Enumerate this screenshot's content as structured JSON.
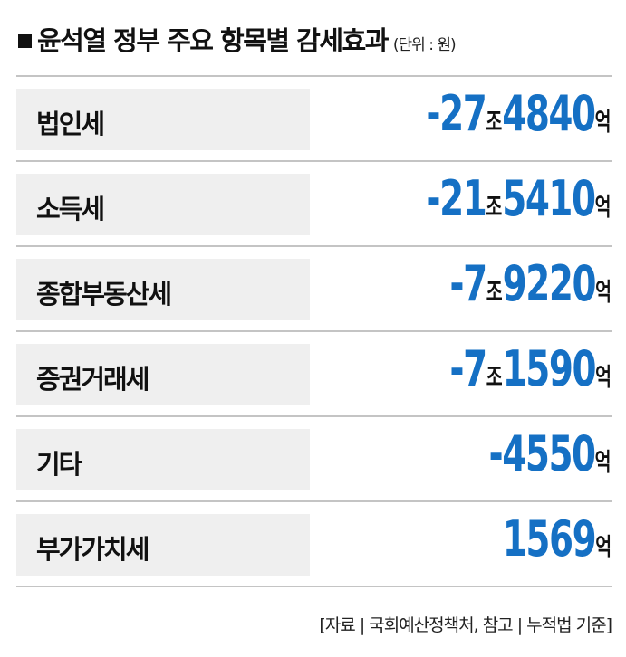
{
  "title": "윤석열 정부 주요 항목별 감세효과",
  "unit": "(단위 : 원)",
  "colors": {
    "value": "#1570c4",
    "label_bg": "#efefef",
    "divider": "#c4c4c4"
  },
  "chart_data": {
    "type": "table",
    "rows": [
      {
        "label": "법인세",
        "jo": "-27",
        "jo_unit": "조",
        "eok": "4840",
        "eok_unit": "억",
        "value_eok": -274840
      },
      {
        "label": "소득세",
        "jo": "-21",
        "jo_unit": "조",
        "eok": "5410",
        "eok_unit": "억",
        "value_eok": -215410
      },
      {
        "label": "종합부동산세",
        "jo": "-7",
        "jo_unit": "조",
        "eok": "9220",
        "eok_unit": "억",
        "value_eok": -79220
      },
      {
        "label": "증권거래세",
        "jo": "-7",
        "jo_unit": "조",
        "eok": "1590",
        "eok_unit": "억",
        "value_eok": -71590
      },
      {
        "label": "기타",
        "jo": "",
        "jo_unit": "",
        "eok": "-4550",
        "eok_unit": "억",
        "value_eok": -4550
      },
      {
        "label": "부가가치세",
        "jo": "",
        "jo_unit": "",
        "eok": "1569",
        "eok_unit": "억",
        "value_eok": 1569
      }
    ]
  },
  "footer": "[자료 | 국회예산정책처, 참고 | 누적법 기준]"
}
